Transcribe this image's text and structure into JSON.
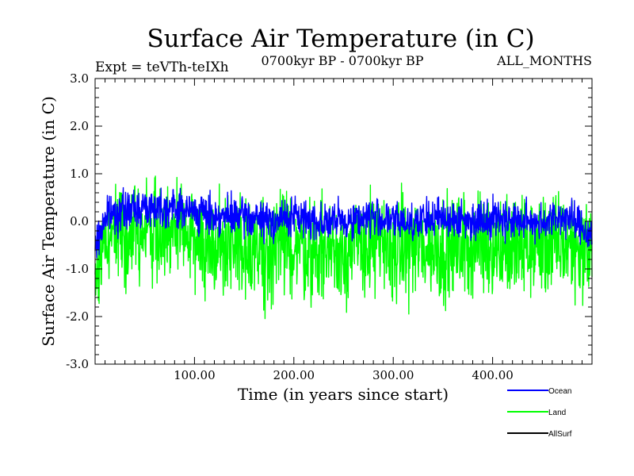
{
  "chart_data": {
    "type": "line",
    "title": "Surface Air Temperature (in C)",
    "subtitle_left": "Expt = teVTh-teIXh",
    "subtitle_center": "0700kyr BP - 0700kyr BP",
    "subtitle_right": "ALL_MONTHS",
    "xlabel": "Time (in years since start)",
    "ylabel": "Surface Air Temperature (in C)",
    "xlim": [
      0,
      500
    ],
    "ylim": [
      -3.0,
      3.0
    ],
    "x_ticks": [
      100,
      200,
      300,
      400
    ],
    "x_tick_labels": [
      "100.00",
      "200.00",
      "300.00",
      "400.00"
    ],
    "y_ticks": [
      -3.0,
      -2.0,
      -1.0,
      0.0,
      1.0,
      2.0,
      3.0
    ],
    "y_tick_labels": [
      "-3.0",
      "-2.0",
      "-1.0",
      "0.0",
      "1.0",
      "2.0",
      "3.0"
    ],
    "grid": false,
    "legend_position": "bottom-right, below plot",
    "series": [
      {
        "name": "Ocean",
        "color": "#0000ff",
        "x": [
          0,
          10,
          25,
          50,
          75,
          100,
          125,
          150,
          175,
          200,
          225,
          250,
          275,
          300,
          325,
          350,
          375,
          400,
          425,
          450,
          475,
          500
        ],
        "values": [
          -0.6,
          0.1,
          0.2,
          0.3,
          0.3,
          0.2,
          0.1,
          0.1,
          0.0,
          0.1,
          0.0,
          0.0,
          0.1,
          0.0,
          0.0,
          0.1,
          0.0,
          0.1,
          0.0,
          0.0,
          0.1,
          -0.3
        ]
      },
      {
        "name": "Land",
        "color": "#00ff00",
        "x": [
          0,
          10,
          25,
          50,
          75,
          100,
          125,
          150,
          175,
          200,
          225,
          250,
          275,
          300,
          325,
          350,
          375,
          400,
          425,
          450,
          475,
          500
        ],
        "values": [
          -1.2,
          -0.3,
          -0.2,
          -0.2,
          -0.2,
          -0.4,
          -0.5,
          -0.5,
          -0.6,
          -0.5,
          -0.6,
          -0.6,
          -0.5,
          -0.6,
          -0.5,
          -0.6,
          -0.5,
          -0.5,
          -0.6,
          -0.5,
          -0.5,
          -0.6
        ]
      },
      {
        "name": "AllSurf",
        "color": "#000000",
        "x": [],
        "values": []
      }
    ]
  }
}
